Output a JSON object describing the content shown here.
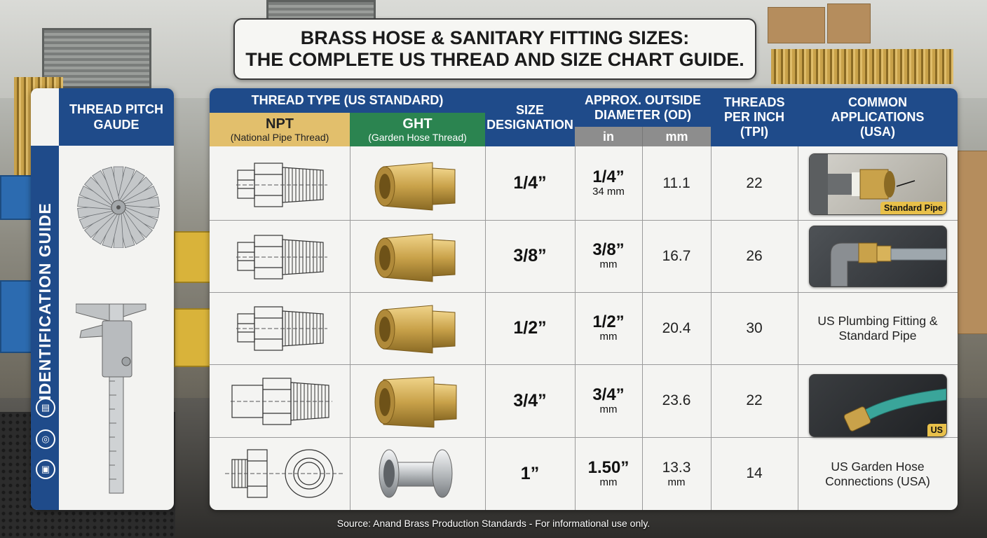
{
  "title": {
    "line1": "BRASS HOSE & SANITARY FITTING SIZES:",
    "line2": "THE COMPLETE US THREAD AND SIZE CHART GUIDE."
  },
  "left_panel": {
    "header": "THREAD PITCH GAUDE",
    "vertical_label": "IDENTIFICATION GUIDE",
    "icons": [
      "ruler-icon",
      "hose-icon",
      "truck-icon"
    ]
  },
  "table": {
    "thread_type_header": "THREAD TYPE (US STANDARD)",
    "npt": {
      "code": "NPT",
      "name": "(National Pipe Thread)"
    },
    "ght": {
      "code": "GHT",
      "name": "(Garden Hose Thread)"
    },
    "size_header": "SIZE DESIGNATION",
    "od_header": "APPROX. OUTSIDE DIAMETER (OD)",
    "od_in": "in",
    "od_mm": "mm",
    "tpi_header": "THREADS PER INCH (TPI)",
    "apps_header": "COMMON APPLICATIONS (USA)",
    "rows": [
      {
        "size": "1/4”",
        "od_in": "1/4”",
        "od_in_sub": "34 mm",
        "od_mm": "11.1",
        "tpi": "22"
      },
      {
        "size": "3/8”",
        "od_in": "3/8”",
        "od_in_sub": "mm",
        "od_mm": "16.7",
        "tpi": "26"
      },
      {
        "size": "1/2”",
        "od_in": "1/2”",
        "od_in_sub": "mm",
        "od_mm": "20.4",
        "tpi": "30"
      },
      {
        "size": "3/4”",
        "od_in": "3/4”",
        "od_in_sub": "mm",
        "od_mm": "23.6",
        "tpi": "22"
      },
      {
        "size": "1”",
        "od_in": "1.50”",
        "od_in_sub": "mm",
        "od_mm": "13.3",
        "od_mm_sub": "mm",
        "tpi": "14"
      }
    ],
    "applications": {
      "photo1_tag": "Standard Pipe",
      "row3_text": "US Plumbing Fitting & Standard Pipe",
      "photo4_tag": "US",
      "row5_text": "US Garden Hose Connections (USA)"
    }
  },
  "source": "Source: Anand Brass Production Standards - For informational use only.",
  "colors": {
    "header_blue": "#1f4b8a",
    "npt_gold": "#e2bf6c",
    "ght_green": "#2b8450",
    "subheader_gray": "#8d8d8d",
    "brass": "#c9a24a"
  }
}
